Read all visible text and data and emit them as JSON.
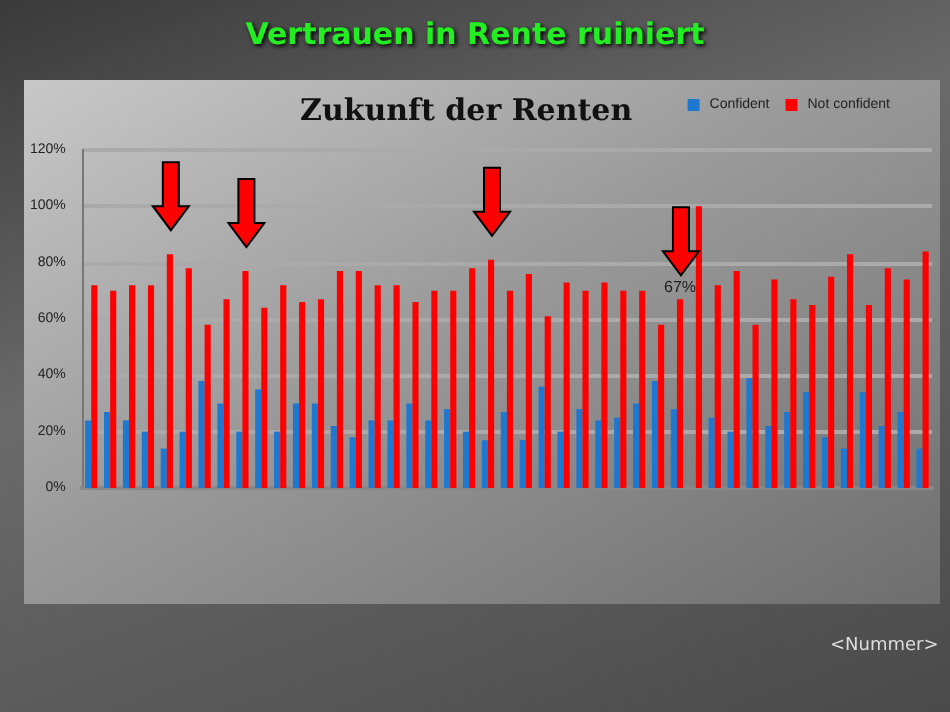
{
  "chart_data": {
    "type": "bar",
    "title": "Vertrauen in Rente ruiniert",
    "subtitle": "Zukunft der Renten",
    "categories": [
      null,
      null,
      null,
      null,
      null,
      null,
      null,
      null,
      null,
      null,
      null,
      null,
      null,
      null,
      null,
      null,
      null,
      null,
      null,
      null,
      null,
      null,
      null,
      null,
      null,
      null,
      null,
      null,
      null,
      null,
      null,
      null,
      null,
      null,
      null,
      null,
      null,
      null,
      null,
      null,
      null,
      null,
      null,
      null,
      null
    ],
    "series": [
      {
        "name": "Confident",
        "color": "#1f78d0",
        "values": [
          24,
          27,
          24,
          20,
          14,
          20,
          38,
          30,
          20,
          35,
          20,
          30,
          30,
          22,
          18,
          24,
          24,
          30,
          24,
          28,
          20,
          17,
          27,
          17,
          36,
          20,
          28,
          24,
          25,
          30,
          38,
          28,
          null,
          25,
          20,
          39,
          22,
          27,
          34,
          18,
          14,
          34,
          22,
          27,
          14
        ]
      },
      {
        "name": "Not confident",
        "color": "#ff0000",
        "values": [
          72,
          70,
          72,
          72,
          83,
          78,
          58,
          67,
          77,
          64,
          72,
          66,
          67,
          77,
          77,
          72,
          72,
          66,
          70,
          70,
          78,
          81,
          70,
          76,
          61,
          73,
          70,
          73,
          70,
          70,
          58,
          67,
          100,
          72,
          77,
          58,
          74,
          67,
          65,
          75,
          83,
          65,
          78,
          74,
          84
        ],
        "value_labels": [
          null,
          null,
          null,
          null,
          null,
          null,
          null,
          null,
          null,
          null,
          null,
          null,
          null,
          null,
          null,
          null,
          null,
          null,
          null,
          null,
          null,
          null,
          null,
          null,
          null,
          null,
          null,
          null,
          null,
          null,
          null,
          "67%",
          null,
          null,
          null,
          null,
          null,
          null,
          null,
          null,
          null,
          null,
          null,
          null,
          null
        ]
      }
    ],
    "ylim": [
      0,
      120
    ],
    "yticks": [
      {
        "value": 0,
        "label": "0%"
      },
      {
        "value": 20,
        "label": "20%"
      },
      {
        "value": 40,
        "label": "40%"
      },
      {
        "value": 60,
        "label": "60%"
      },
      {
        "value": 80,
        "label": "80%"
      },
      {
        "value": 100,
        "label": "100%"
      },
      {
        "value": 120,
        "label": "120%"
      }
    ],
    "grid": "y",
    "legend": "top right",
    "annotations": [
      "<Nummer>"
    ]
  }
}
